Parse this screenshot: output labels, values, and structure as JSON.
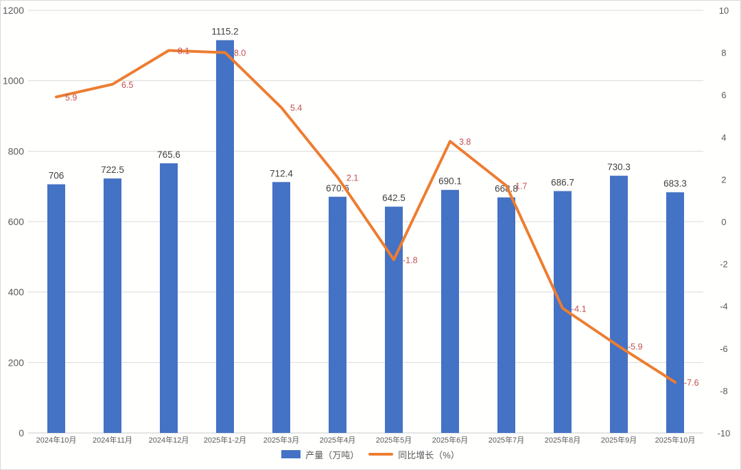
{
  "chart_data": {
    "type": "combo-bar-line",
    "title": "",
    "categories": [
      "2024年10月",
      "2024年11月",
      "2024年12月",
      "2025年1-2月",
      "2025年3月",
      "2025年4月",
      "2025年5月",
      "2025年6月",
      "2025年7月",
      "2025年8月",
      "2025年9月",
      "2025年10月"
    ],
    "series": [
      {
        "name": "产量（万吨）",
        "type": "bar",
        "axis": "left",
        "color": "#4472c4",
        "label_color": "#404040",
        "values": [
          706,
          722.5,
          765.6,
          1115.2,
          712.4,
          670.6,
          642.5,
          690.1,
          668.8,
          686.7,
          730.3,
          683.3
        ],
        "labels": [
          "706",
          "722.5",
          "765.6",
          "1115.2",
          "712.4",
          "670.6",
          "642.5",
          "690.1",
          "668.8",
          "686.7",
          "730.3",
          "683.3"
        ]
      },
      {
        "name": "同比增长（%）",
        "type": "line",
        "axis": "right",
        "color": "#ed7d31",
        "label_color": "#c0504d",
        "values": [
          5.9,
          6.5,
          8.1,
          8.0,
          5.4,
          2.1,
          -1.8,
          3.8,
          1.7,
          -4.1,
          -5.9,
          -7.6
        ],
        "labels": [
          "5.9",
          "6.5",
          "8.1",
          "8.0",
          "5.4",
          "2.1",
          "-1.8",
          "3.8",
          "1.7",
          "-4.1",
          "-5.9",
          "-7.6"
        ]
      }
    ],
    "left_axis": {
      "min": 0,
      "max": 1200,
      "step": 200,
      "tick_labels": [
        "0",
        "200",
        "400",
        "600",
        "800",
        "1000",
        "1200"
      ]
    },
    "right_axis": {
      "min": -10,
      "max": 10,
      "step": 2,
      "tick_labels": [
        "-10",
        "-8",
        "-6",
        "-4",
        "-2",
        "0",
        "2",
        "4",
        "6",
        "8",
        "10"
      ]
    },
    "grid": true,
    "grid_color": "#d9d9d9",
    "axis_text_color": "#595959",
    "legend_position": "bottom",
    "background_color": "#ffffff"
  }
}
